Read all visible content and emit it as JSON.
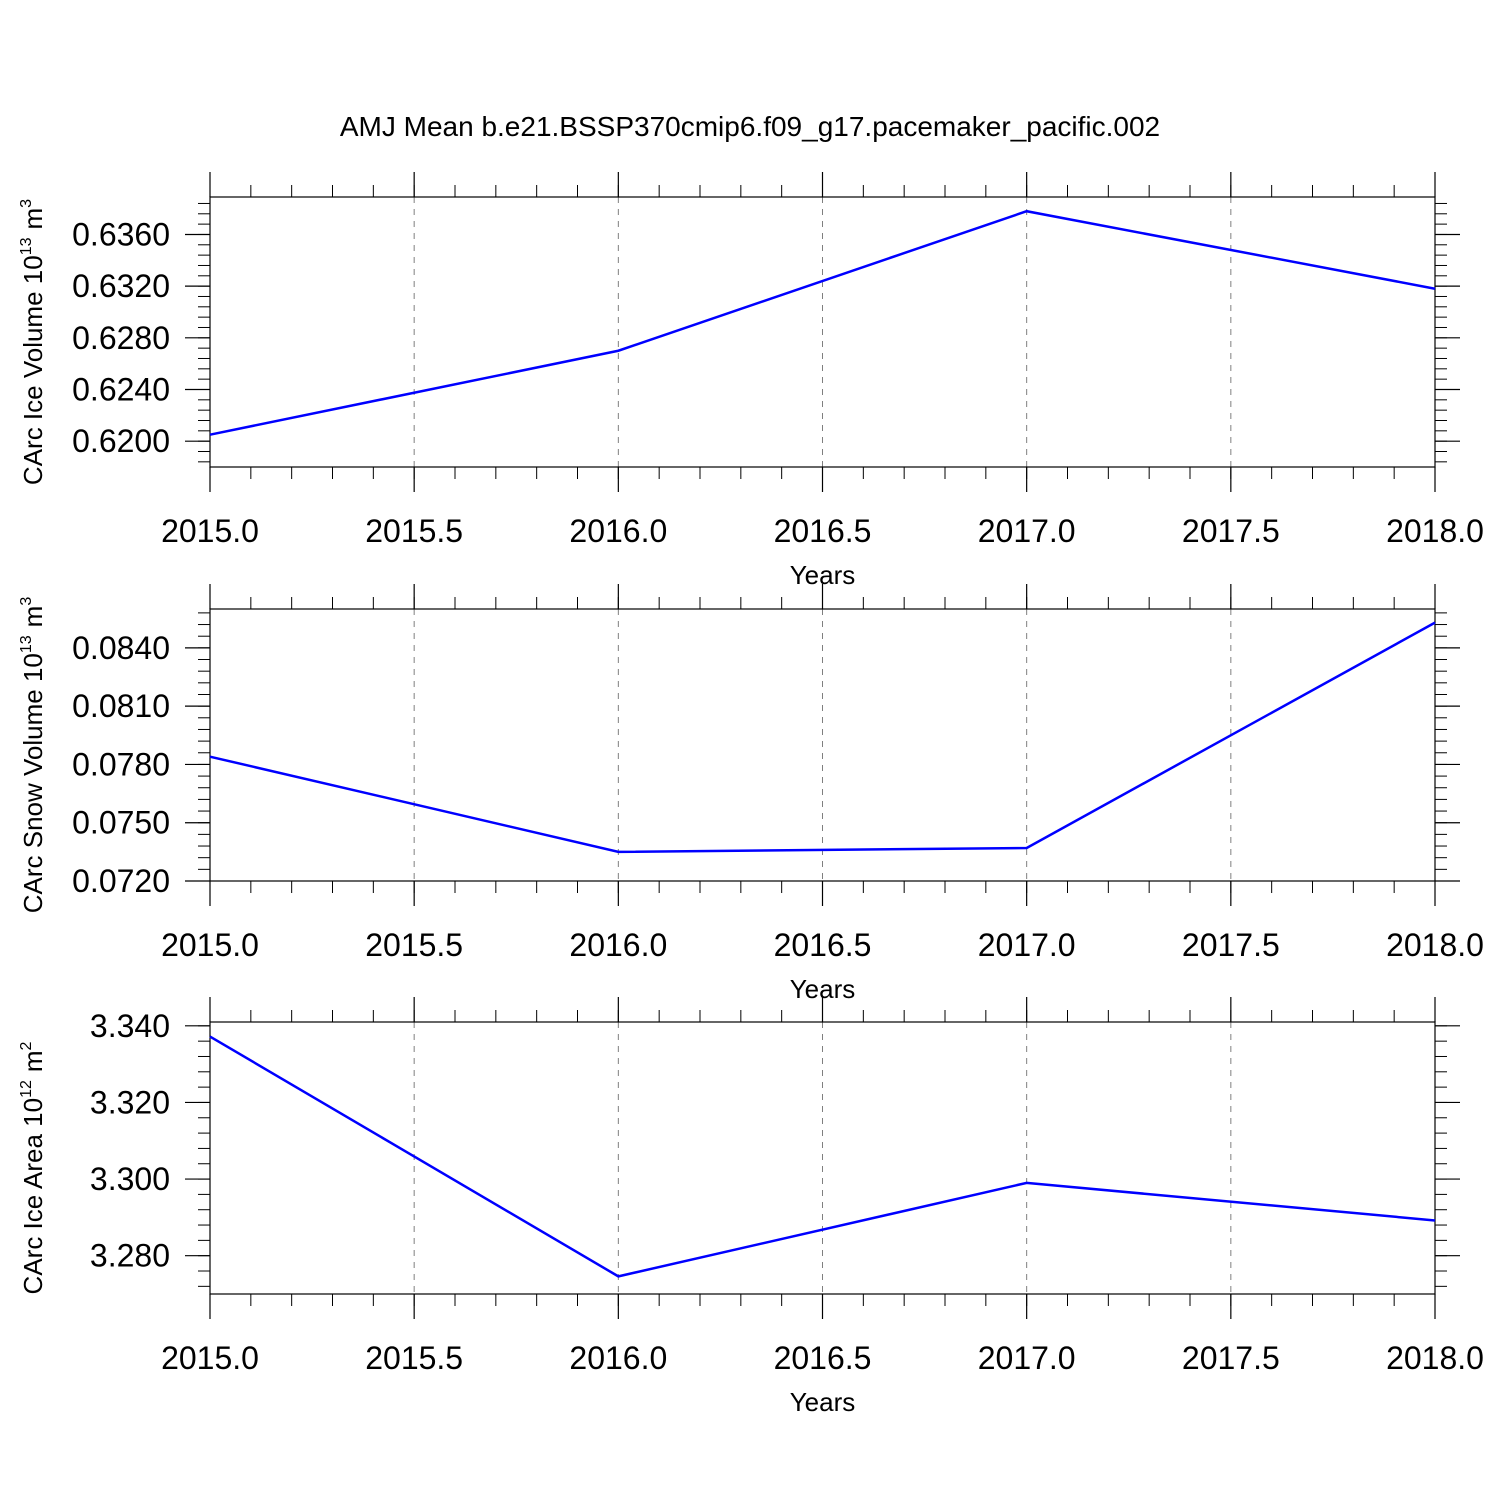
{
  "title": "AMJ Mean b.e21.BSSP370cmip6.f09_g17.pacemaker_pacific.002",
  "colors": {
    "line": "#0000ff",
    "axis": "#000000",
    "grid": "#7f7f7f"
  },
  "chart_data": [
    {
      "type": "line",
      "xlabel": "Years",
      "ylabel": "CArc Ice Volume 10",
      "ylabel_exponent": "13",
      "ylabel_unit": "m",
      "ylabel_unit_exponent": "3",
      "x": [
        2015.0,
        2016.0,
        2017.0,
        2018.0
      ],
      "series": [
        {
          "values": [
            0.6205,
            0.627,
            0.6378,
            0.6318
          ]
        }
      ],
      "xlim": [
        2015.0,
        2018.0
      ],
      "ylim": [
        0.618,
        0.6389
      ],
      "xticks": [
        2015.0,
        2015.5,
        2016.0,
        2016.5,
        2017.0,
        2017.5,
        2018.0
      ],
      "xtick_labels": [
        "2015.0",
        "2015.5",
        "2016.0",
        "2016.5",
        "2017.0",
        "2017.5",
        "2018.0"
      ],
      "yticks": [
        0.62,
        0.624,
        0.628,
        0.632,
        0.636
      ],
      "ytick_labels": [
        "0.6200",
        "0.6240",
        "0.6280",
        "0.6320",
        "0.6360"
      ],
      "y_minor_step": 0.0008,
      "grid": "vertical dashed"
    },
    {
      "type": "line",
      "xlabel": "Years",
      "ylabel": "CArc Snow Volume 10",
      "ylabel_exponent": "13",
      "ylabel_unit": "m",
      "ylabel_unit_exponent": "3",
      "x": [
        2015.0,
        2016.0,
        2017.0,
        2018.0
      ],
      "series": [
        {
          "values": [
            0.0784,
            0.0735,
            0.0737,
            0.0853
          ]
        }
      ],
      "xlim": [
        2015.0,
        2018.0
      ],
      "ylim": [
        0.072,
        0.086
      ],
      "xticks": [
        2015.0,
        2015.5,
        2016.0,
        2016.5,
        2017.0,
        2017.5,
        2018.0
      ],
      "xtick_labels": [
        "2015.0",
        "2015.5",
        "2016.0",
        "2016.5",
        "2017.0",
        "2017.5",
        "2018.0"
      ],
      "yticks": [
        0.072,
        0.075,
        0.078,
        0.081,
        0.084
      ],
      "ytick_labels": [
        "0.0720",
        "0.0750",
        "0.0780",
        "0.0810",
        "0.0840"
      ],
      "y_minor_step": 0.0006,
      "grid": "vertical dashed"
    },
    {
      "type": "line",
      "xlabel": "Years",
      "ylabel": "CArc Ice Area 10",
      "ylabel_exponent": "12",
      "ylabel_unit": "m",
      "ylabel_unit_exponent": "2",
      "x": [
        2015.0,
        2016.0,
        2017.0,
        2018.0
      ],
      "series": [
        {
          "values": [
            3.3372,
            3.2746,
            3.299,
            3.2892
          ]
        }
      ],
      "xlim": [
        2015.0,
        2018.0
      ],
      "ylim": [
        3.27,
        3.341
      ],
      "xticks": [
        2015.0,
        2015.5,
        2016.0,
        2016.5,
        2017.0,
        2017.5,
        2018.0
      ],
      "xtick_labels": [
        "2015.0",
        "2015.5",
        "2016.0",
        "2016.5",
        "2017.0",
        "2017.5",
        "2018.0"
      ],
      "yticks": [
        3.28,
        3.3,
        3.32,
        3.34
      ],
      "ytick_labels": [
        "3.280",
        "3.300",
        "3.320",
        "3.340"
      ],
      "y_minor_step": 0.004,
      "grid": "vertical dashed"
    }
  ]
}
